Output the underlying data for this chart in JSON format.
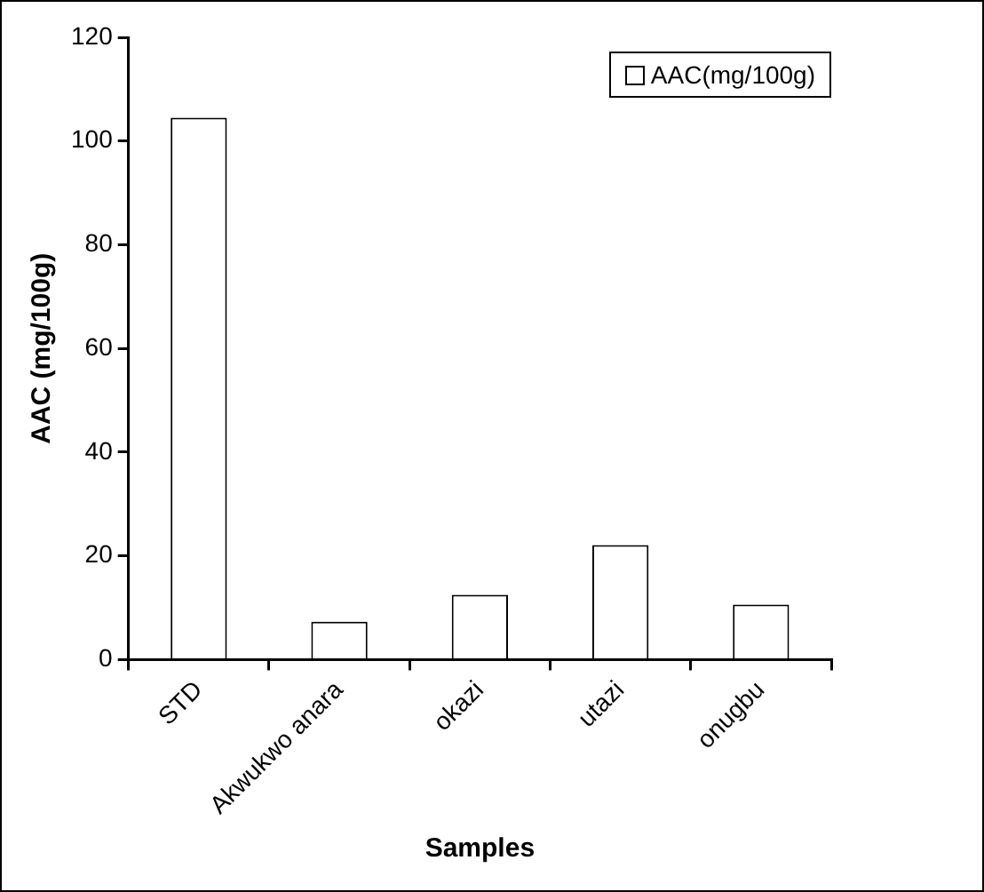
{
  "chart_data": {
    "type": "bar",
    "xlabel": "Samples",
    "ylabel": "AAC (mg/100g)",
    "categories": [
      "STD",
      "Akwukwo anara",
      "okazi",
      "utazi",
      "onugbu"
    ],
    "series": [
      {
        "name": "AAC(mg/100g)",
        "color": "#ffffff",
        "values": [
          104.5,
          7.3,
          12.5,
          22.1,
          10.6
        ]
      }
    ],
    "ylim": [
      0,
      120
    ],
    "yticks": [
      0,
      20,
      40,
      60,
      80,
      100,
      120
    ],
    "grid": false,
    "legend": "top right"
  }
}
